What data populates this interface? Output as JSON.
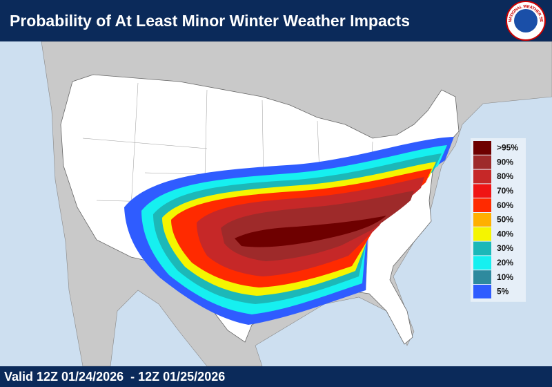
{
  "header": {
    "title": "Probability of At Least Minor Winter Weather Impacts",
    "logo": "NATIONAL WEATHER SERVICE"
  },
  "legend": {
    "items": [
      {
        "label": ">95%",
        "color": "#6e0000"
      },
      {
        "label": "90%",
        "color": "#9e2a2a"
      },
      {
        "label": "80%",
        "color": "#c62828"
      },
      {
        "label": "70%",
        "color": "#f01414"
      },
      {
        "label": "60%",
        "color": "#ff2a00"
      },
      {
        "label": "50%",
        "color": "#ffb000"
      },
      {
        "label": "40%",
        "color": "#f5f500"
      },
      {
        "label": "30%",
        "color": "#1cb8b8"
      },
      {
        "label": "20%",
        "color": "#16f0f0"
      },
      {
        "label": "10%",
        "color": "#2e8a9e"
      },
      {
        "label": "5%",
        "color": "#2f5cff"
      }
    ]
  },
  "footer": {
    "valid": "Valid 12Z 01/24/2026  - 12Z 01/25/2026"
  }
}
